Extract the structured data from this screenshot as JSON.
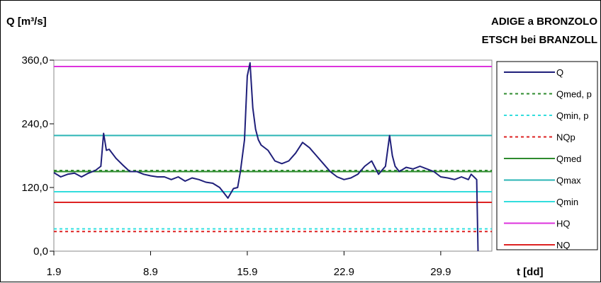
{
  "chart_data": {
    "type": "line",
    "title": "ADIGE a BRONZOLO",
    "subtitle": "ETSCH bei BRANZOLL",
    "ylabel": "Q [m³/s]",
    "xlabel": "t [dd]",
    "ylim": [
      0,
      360
    ],
    "xlim": [
      0,
      31.7
    ],
    "y_ticks": [
      {
        "value": 0,
        "label": "0,0"
      },
      {
        "value": 120,
        "label": "120,0"
      },
      {
        "value": 240,
        "label": "240,0"
      },
      {
        "value": 360,
        "label": "360,0"
      }
    ],
    "x_ticks": [
      {
        "value": 0,
        "label": "1.9"
      },
      {
        "value": 7,
        "label": "8.9"
      },
      {
        "value": 14,
        "label": "15.9"
      },
      {
        "value": 21,
        "label": "22.9"
      },
      {
        "value": 28,
        "label": "29.9"
      }
    ],
    "legend_position": "right",
    "grid": false,
    "series": [
      {
        "name": "Q",
        "color": "#1f1f7a",
        "style": "solid",
        "x": [
          0,
          0.5,
          1,
          1.5,
          2,
          2.5,
          3,
          3.4,
          3.6,
          3.8,
          4,
          4.5,
          5,
          5.5,
          6,
          6.5,
          7,
          7.5,
          8,
          8.5,
          9,
          9.5,
          10,
          10.5,
          11,
          11.5,
          12,
          12.3,
          12.6,
          13,
          13.3,
          13.5,
          13.8,
          14,
          14.2,
          14.4,
          14.6,
          14.8,
          15,
          15.5,
          16,
          16.5,
          17,
          17.5,
          18,
          18.5,
          19,
          19.5,
          20,
          20.5,
          21,
          21.5,
          22,
          22.5,
          23,
          23.5,
          24,
          24.3,
          24.5,
          24.7,
          25,
          25.5,
          26,
          26.5,
          27,
          27.5,
          28,
          28.5,
          29,
          29.5,
          30,
          30.2,
          30.4,
          30.6,
          30.7
        ],
        "values": [
          148,
          140,
          145,
          147,
          140,
          147,
          152,
          160,
          222,
          190,
          192,
          175,
          162,
          150,
          150,
          145,
          142,
          140,
          140,
          135,
          140,
          132,
          138,
          135,
          130,
          128,
          120,
          110,
          100,
          118,
          120,
          150,
          210,
          330,
          355,
          270,
          230,
          210,
          200,
          190,
          170,
          165,
          170,
          185,
          205,
          195,
          180,
          165,
          150,
          140,
          135,
          138,
          145,
          160,
          170,
          145,
          160,
          218,
          180,
          160,
          150,
          158,
          155,
          160,
          155,
          150,
          140,
          138,
          135,
          140,
          135,
          145,
          140,
          135,
          0
        ]
      },
      {
        "name": "Qmed, p",
        "color": "#2e8b2e",
        "style": "dashed",
        "values": [
          152
        ]
      },
      {
        "name": "Qmin, p",
        "color": "#33dddd",
        "style": "dashed",
        "values": [
          42
        ]
      },
      {
        "name": "NQp",
        "color": "#dd2222",
        "style": "dashed",
        "values": [
          37
        ]
      },
      {
        "name": "Qmed",
        "color": "#2e8b2e",
        "style": "solid",
        "values": [
          150
        ]
      },
      {
        "name": "Qmax",
        "color": "#2ab5b5",
        "style": "solid",
        "values": [
          218
        ]
      },
      {
        "name": "Qmin",
        "color": "#33dddd",
        "style": "solid",
        "values": [
          112
        ]
      },
      {
        "name": "HQ",
        "color": "#dd33dd",
        "style": "solid",
        "values": [
          348
        ]
      },
      {
        "name": "NQ",
        "color": "#dd2222",
        "style": "solid",
        "values": [
          92
        ]
      }
    ]
  }
}
